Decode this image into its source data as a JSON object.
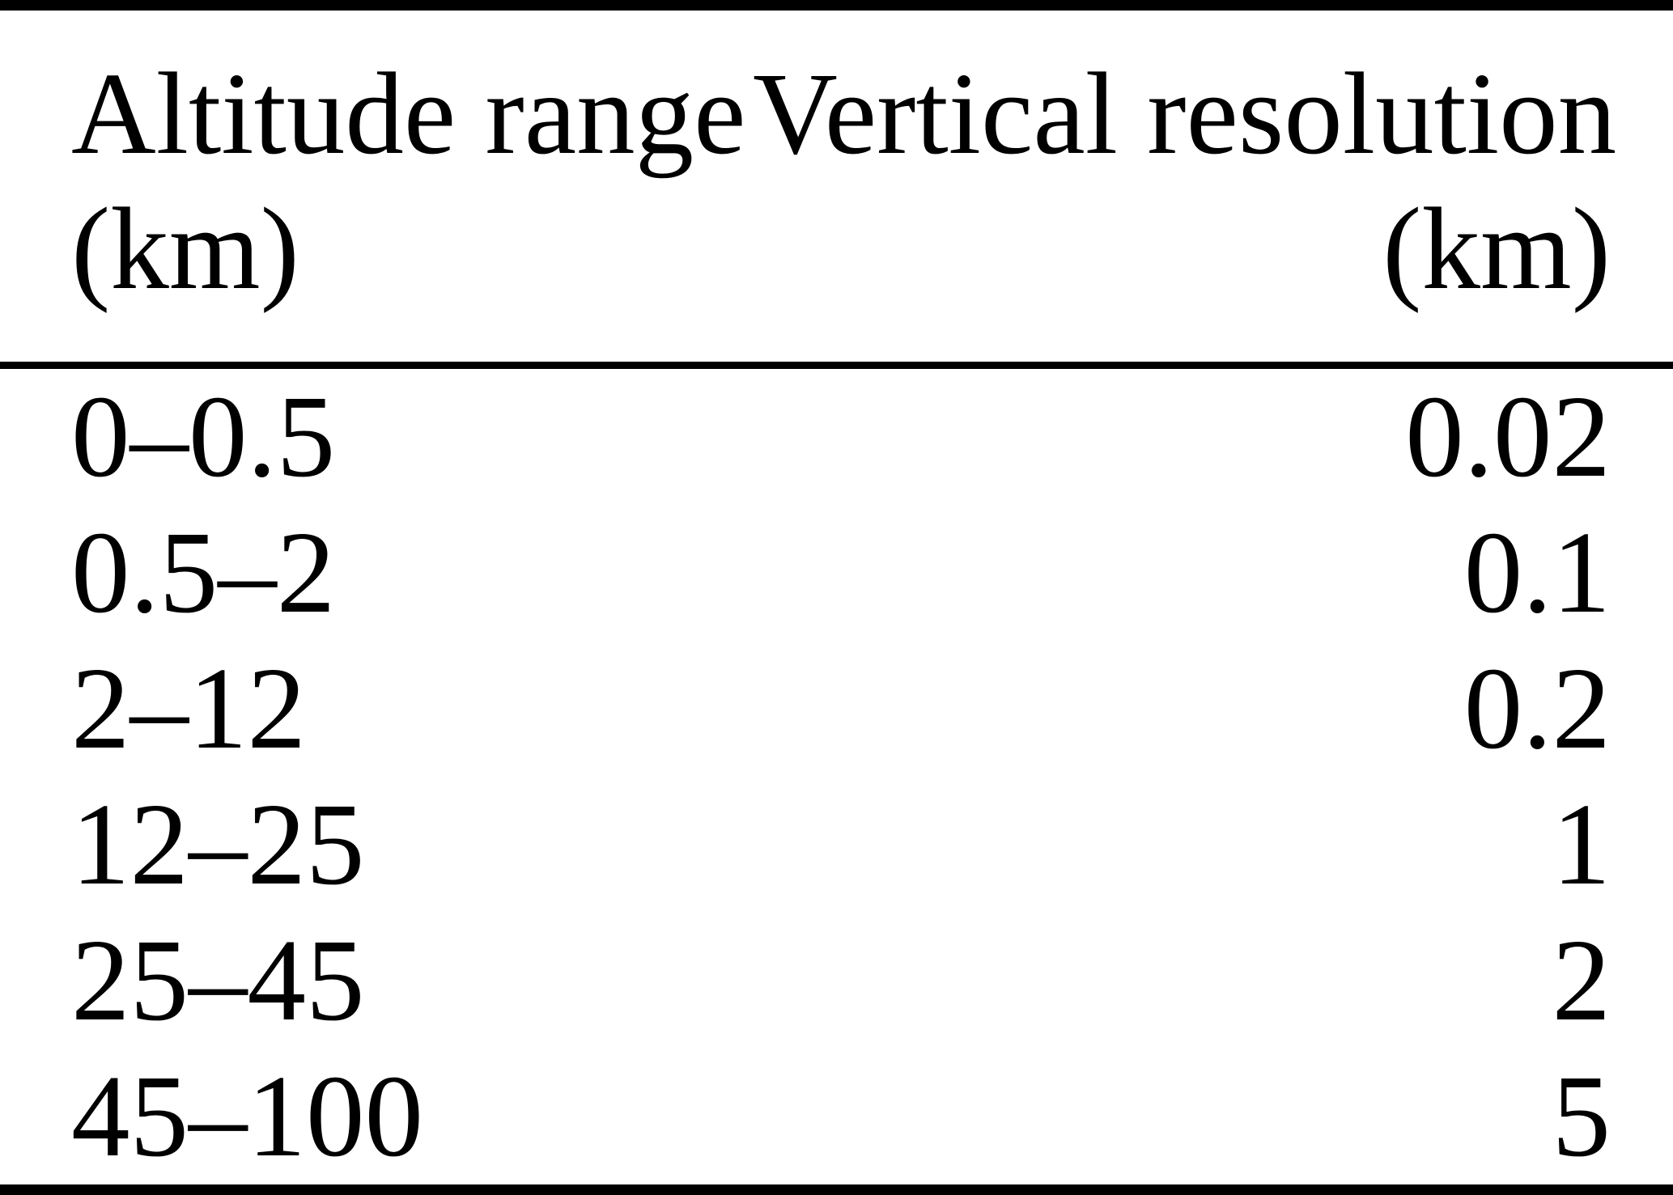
{
  "colors": {
    "background": "#ffffff",
    "text": "#000000",
    "rule": "#000000"
  },
  "table": {
    "columns": [
      {
        "id": "altitude_range",
        "header_line1": "Altitude range",
        "header_line2": "(km)",
        "align": "left"
      },
      {
        "id": "vertical_resolution",
        "header_line1": "Vertical resolution",
        "header_line2": "(km)",
        "align": "right"
      }
    ],
    "rows": [
      {
        "altitude_range": "0–0.5",
        "vertical_resolution": "0.02"
      },
      {
        "altitude_range": "0.5–2",
        "vertical_resolution": "0.1"
      },
      {
        "altitude_range": "2–12",
        "vertical_resolution": "0.2"
      },
      {
        "altitude_range": "12–25",
        "vertical_resolution": "1"
      },
      {
        "altitude_range": "25–45",
        "vertical_resolution": "2"
      },
      {
        "altitude_range": "45–100",
        "vertical_resolution": "5"
      }
    ]
  }
}
